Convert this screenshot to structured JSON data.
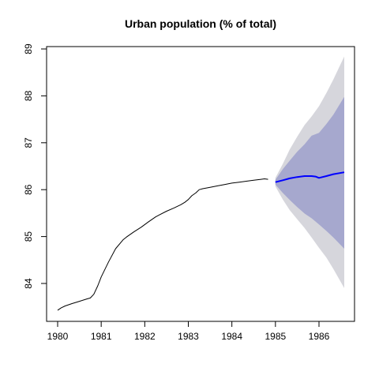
{
  "chart_data": {
    "type": "line",
    "title": "Urban population (% of total)",
    "xlabel": "",
    "ylabel": "",
    "xlim": [
      1980,
      1986.7
    ],
    "ylim": [
      83.35,
      89.05
    ],
    "x_ticks": [
      1980,
      1981,
      1982,
      1983,
      1984,
      1985,
      1986
    ],
    "y_ticks": [
      84,
      85,
      86,
      87,
      88,
      89
    ],
    "grid": false,
    "series": [
      {
        "kind": "observed",
        "color": "#000000",
        "x": [
          1980.0,
          1980.08,
          1980.17,
          1980.33,
          1980.5,
          1980.67,
          1980.75,
          1980.83,
          1980.92,
          1981.0,
          1981.17,
          1981.33,
          1981.5,
          1981.58,
          1981.75,
          1981.92,
          1982.08,
          1982.25,
          1982.33,
          1982.5,
          1982.67,
          1982.83,
          1982.92,
          1983.0,
          1983.08,
          1983.17,
          1983.25,
          1983.33,
          1983.5,
          1983.67,
          1983.83,
          1984.0,
          1984.17,
          1984.33,
          1984.5,
          1984.67,
          1984.75,
          1984.83
        ],
        "y": [
          83.43,
          83.48,
          83.52,
          83.57,
          83.62,
          83.67,
          83.69,
          83.77,
          83.95,
          84.14,
          84.46,
          84.74,
          84.93,
          84.99,
          85.1,
          85.2,
          85.31,
          85.42,
          85.46,
          85.54,
          85.61,
          85.68,
          85.73,
          85.79,
          85.87,
          85.93,
          86.0,
          86.02,
          86.05,
          86.08,
          86.11,
          86.14,
          86.16,
          86.18,
          86.2,
          86.22,
          86.23,
          86.22
        ]
      },
      {
        "kind": "forecast",
        "color": "#0000ff",
        "x": [
          1985.0,
          1985.17,
          1985.33,
          1985.5,
          1985.67,
          1985.83,
          1985.92,
          1986.0,
          1986.17,
          1986.33,
          1986.58
        ],
        "y": [
          86.16,
          86.2,
          86.24,
          86.27,
          86.29,
          86.29,
          86.28,
          86.25,
          86.29,
          86.33,
          86.37
        ]
      }
    ],
    "bands": [
      {
        "level": "95%",
        "color": "#d6d6dc",
        "x": [
          1985.0,
          1985.17,
          1985.33,
          1985.5,
          1985.67,
          1985.83,
          1986.0,
          1986.17,
          1986.33,
          1986.58
        ],
        "lower": [
          86.07,
          85.79,
          85.56,
          85.37,
          85.18,
          84.98,
          84.76,
          84.55,
          84.31,
          83.9
        ],
        "upper": [
          86.25,
          86.55,
          86.86,
          87.13,
          87.38,
          87.56,
          87.78,
          88.06,
          88.35,
          88.84
        ]
      },
      {
        "level": "80%",
        "color": "#a6a8ce",
        "x": [
          1985.0,
          1985.17,
          1985.33,
          1985.5,
          1985.67,
          1985.83,
          1986.0,
          1986.17,
          1986.33,
          1986.58
        ],
        "lower": [
          86.11,
          85.93,
          85.78,
          85.63,
          85.49,
          85.39,
          85.26,
          85.12,
          84.98,
          84.74
        ],
        "upper": [
          86.21,
          86.44,
          86.62,
          86.81,
          86.97,
          87.15,
          87.21,
          87.4,
          87.6,
          87.98
        ]
      }
    ]
  }
}
